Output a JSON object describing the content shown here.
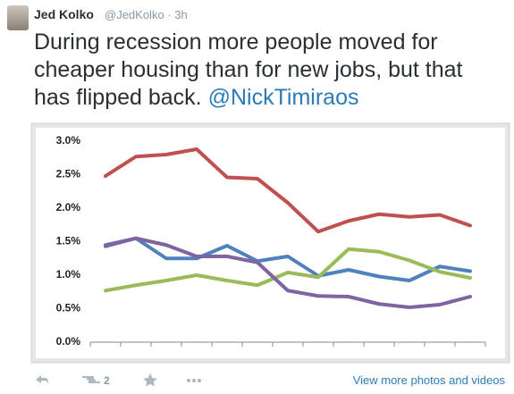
{
  "tweet": {
    "name": "Jed Kolko",
    "meta": "@JedKolko · 3h",
    "lines": [
      "During recession more people moved for",
      "cheaper housing than for new jobs, but that",
      "has flipped back."
    ],
    "mention": "@NickTimiraos"
  },
  "chart_data": {
    "type": "line",
    "categories": [
      null,
      null,
      null,
      null,
      null,
      null,
      null,
      null,
      null,
      null,
      null,
      null,
      null
    ],
    "series": [
      {
        "color": "#c0504d",
        "values": [
          2.48,
          2.77,
          2.8,
          2.88,
          2.46,
          2.44,
          2.08,
          1.65,
          1.81,
          1.91,
          1.87,
          1.9,
          1.74
        ]
      },
      {
        "color": "#4f81bd",
        "values": [
          1.45,
          1.55,
          1.25,
          1.25,
          1.44,
          1.21,
          1.28,
          0.99,
          1.08,
          0.98,
          0.92,
          1.13,
          1.06
        ]
      },
      {
        "color": "#9bbb59",
        "values": [
          0.77,
          0.85,
          0.92,
          1.0,
          0.92,
          0.85,
          1.04,
          0.97,
          1.39,
          1.35,
          1.22,
          1.05,
          0.96
        ]
      },
      {
        "color": "#8064a2",
        "values": [
          1.43,
          1.55,
          1.45,
          1.28,
          1.28,
          1.19,
          0.77,
          0.69,
          0.68,
          0.57,
          0.52,
          0.56,
          0.68
        ]
      }
    ],
    "ylim": [
      0,
      3.2
    ],
    "yticks": [
      {
        "value": 0,
        "label": "0.0%"
      },
      {
        "value": 0.5,
        "label": "0.5%"
      },
      {
        "value": 1,
        "label": "1.0%"
      },
      {
        "value": 1.5,
        "label": "1.5%"
      },
      {
        "value": 2,
        "label": "2.0%"
      },
      {
        "value": 2.5,
        "label": "2.5%"
      },
      {
        "value": 3,
        "label": "3.0%"
      }
    ],
    "grid": false
  },
  "actions": {
    "retweets": 2,
    "link": "View more photos and videos"
  }
}
